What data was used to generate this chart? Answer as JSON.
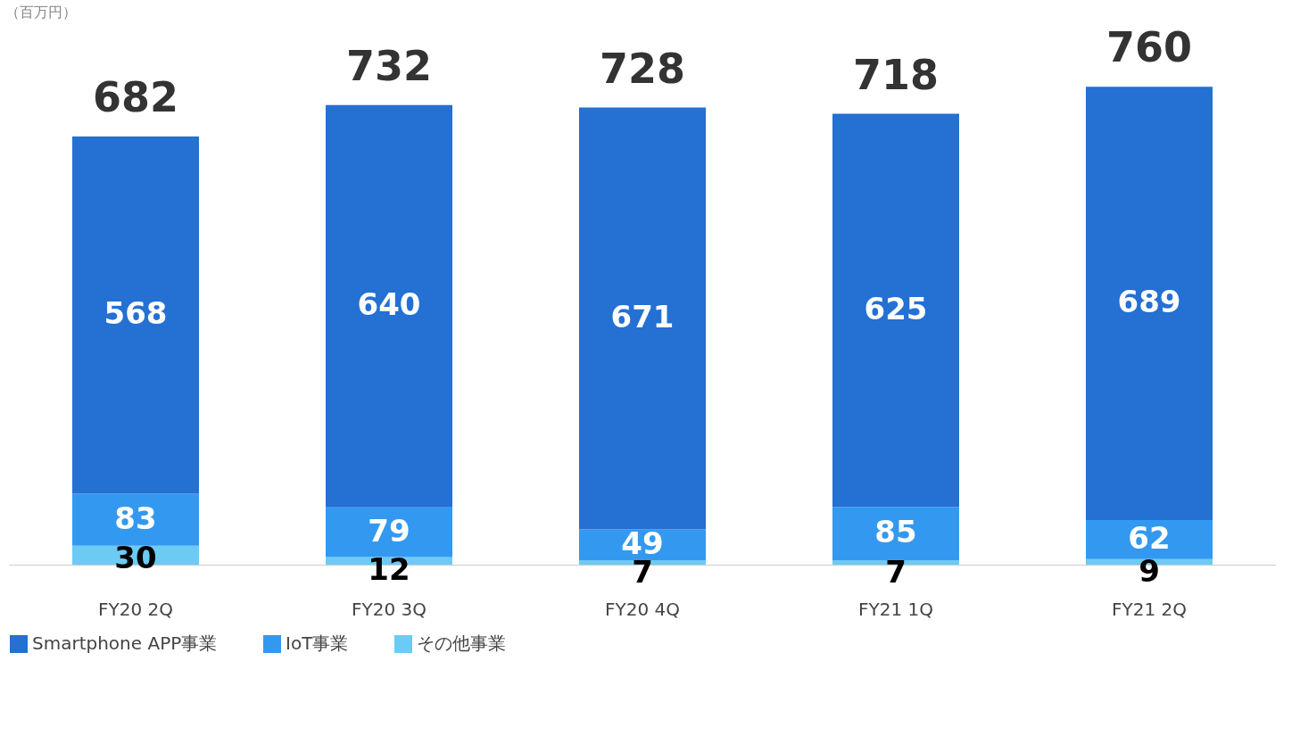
{
  "chart_data": {
    "type": "bar",
    "stacked": true,
    "ylabel": "（百万円）",
    "categories": [
      "FY20 2Q",
      "FY20 3Q",
      "FY20 4Q",
      "FY21 1Q",
      "FY21 2Q"
    ],
    "series": [
      {
        "name": "その他事業",
        "color": "#6ccbf5",
        "values": [
          30,
          12,
          7,
          7,
          9
        ]
      },
      {
        "name": "IoT事業",
        "color": "#3399f0",
        "values": [
          83,
          79,
          49,
          85,
          62
        ]
      },
      {
        "name": "Smartphone APP事業",
        "color": "#2470d3",
        "values": [
          568,
          640,
          671,
          625,
          689
        ]
      }
    ],
    "totals": [
      "682",
      "732",
      "728",
      "718",
      "760"
    ],
    "data_labels": true,
    "legend": "bottom",
    "grid": false
  }
}
